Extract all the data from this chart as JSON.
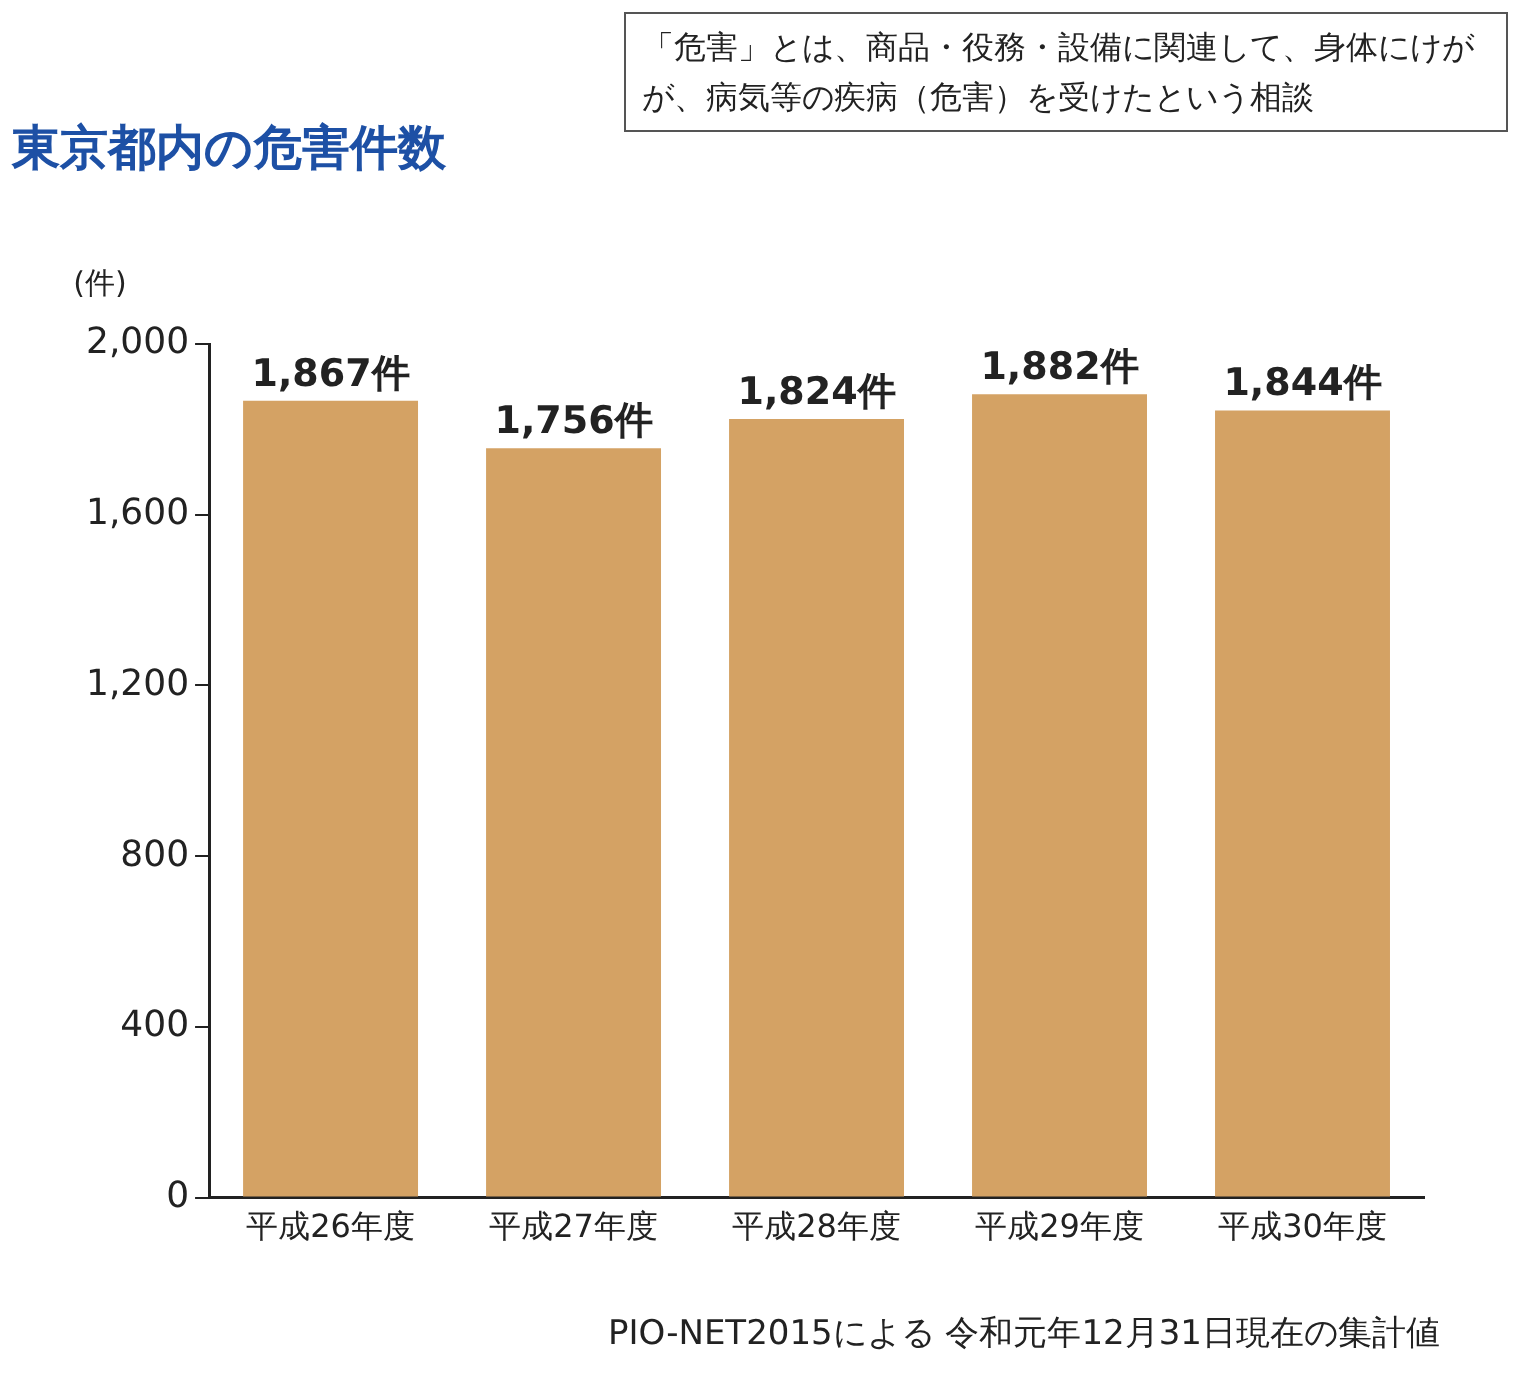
{
  "chart_data": {
    "type": "bar",
    "title": "東京都内の危害件数",
    "ylabel": "(件)",
    "categories": [
      "平成26年度",
      "平成27年度",
      "平成28年度",
      "平成29年度",
      "平成30年度"
    ],
    "values": [
      1867,
      1756,
      1824,
      1882,
      1844
    ],
    "color": "#d4a264",
    "value_labels": [
      "1,867件",
      "1,756件",
      "1,824件",
      "1,882件",
      "1,844件"
    ],
    "ylim": [
      0,
      2000
    ],
    "yticks": [
      {
        "value": 0,
        "label": "0"
      },
      {
        "value": 400,
        "label": "400"
      },
      {
        "value": 800,
        "label": "800"
      },
      {
        "value": 1200,
        "label": "1,200"
      },
      {
        "value": 1600,
        "label": "1,600"
      },
      {
        "value": 2000,
        "label": "2,000"
      }
    ],
    "grid": false,
    "legend": false,
    "annotations": [
      "「危害」とは、商品・役務・設備に関連して、身体にけがが、病気等の疾病（危害）を受けたという相談",
      "PIO-NET2015による 令和元年12月31日現在の集計値"
    ]
  }
}
